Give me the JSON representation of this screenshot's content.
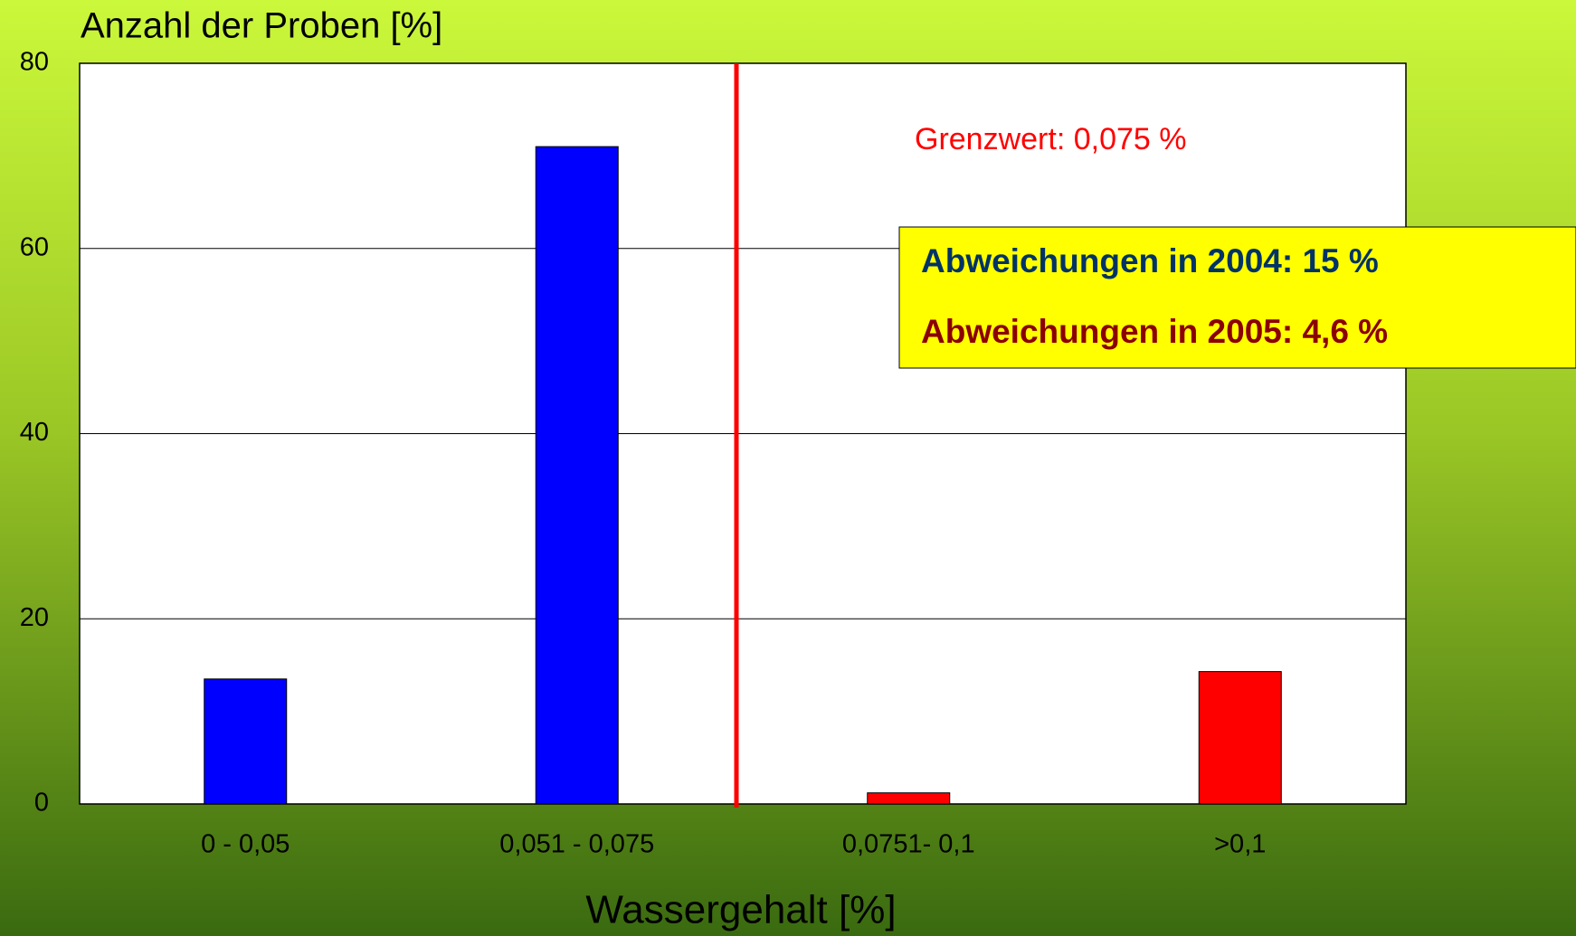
{
  "chart_data": {
    "type": "bar",
    "title": "Anzahl der Proben [%]",
    "x_label": "Wassergehalt [%]",
    "categories": [
      "0 - 0,05",
      "0,051 - 0,075",
      "0,0751- 0,1",
      ">0,1"
    ],
    "values": [
      13.5,
      71,
      1.2,
      14.3
    ],
    "colors": [
      "#0000ff",
      "#0000ff",
      "#ff0000",
      "#ff0000"
    ],
    "ylim": [
      0,
      80
    ],
    "yticks": [
      0,
      20,
      40,
      60,
      80
    ],
    "grid": true,
    "annotations": [
      "Grenzwert: 0,075 %",
      "Abweichungen in 2004: 15 %",
      "Abweichungen in 2005: 4,6 %"
    ]
  }
}
